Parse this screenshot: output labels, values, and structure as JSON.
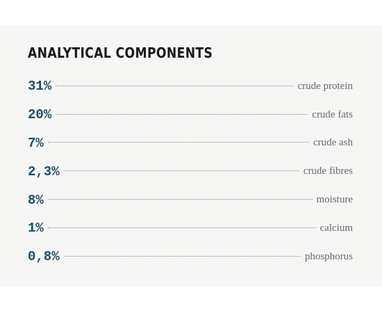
{
  "section": {
    "title": "ANALYTICAL COMPONENTS",
    "components": [
      {
        "value": "31%",
        "label": "crude protein"
      },
      {
        "value": "20%",
        "label": "crude fats"
      },
      {
        "value": "7%",
        "label": "crude ash"
      },
      {
        "value": "2,3%",
        "label": "crude fibres"
      },
      {
        "value": "8%",
        "label": "moisture"
      },
      {
        "value": "1%",
        "label": "calcium"
      },
      {
        "value": "0,8%",
        "label": "phosphorus"
      }
    ]
  },
  "colors": {
    "value_text": "#1f4f66",
    "label_text": "#6a6a6a",
    "panel_background": "#f6f6f5"
  }
}
